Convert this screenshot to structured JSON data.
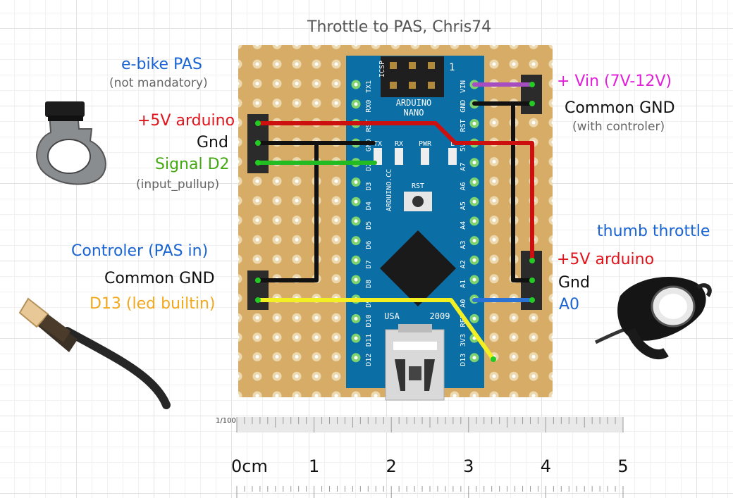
{
  "title": "Throttle to PAS, Chris74",
  "left": {
    "pas_title": "e-bike PAS",
    "pas_sub": "(not mandatory)",
    "plus5v": "+5V arduino",
    "gnd": "Gnd",
    "signal": "Signal D2",
    "signal_sub": "(input_pullup)",
    "controler": "Controler (PAS  in)",
    "common_gnd": "Common GND",
    "d13": "D13 (led builtin)"
  },
  "right": {
    "vin": "+ Vin (7V-12V)",
    "common_gnd": "Common GND",
    "common_gnd_sub": "(with controler)",
    "throttle": "thumb throttle",
    "plus5v": "+5V arduino",
    "gnd": "Gnd",
    "a0": "A0"
  },
  "board": {
    "name1": "ARDUINO",
    "name2": "NANO",
    "icsp": "ICSP",
    "brand": "ARDUINO.CC",
    "rst": "RST",
    "usa": "USA",
    "year": "2009",
    "led_tx": "TX",
    "led_rx": "RX",
    "led_pwr": "PWR",
    "led_l": "L",
    "icsp_pin1": "1",
    "left_pins": [
      "TX1",
      "RX0",
      "RST",
      "GND",
      "D2",
      "D3",
      "D4",
      "D5",
      "D6",
      "D7",
      "D8",
      "D9",
      "D10",
      "D11",
      "D12"
    ],
    "right_pins": [
      "VIN",
      "GND",
      "RST",
      "5V",
      "A7",
      "A6",
      "A5",
      "A4",
      "A3",
      "A2",
      "A1",
      "A0",
      "REF",
      "3V3",
      "D13"
    ]
  },
  "ruler": {
    "scale": "1/100",
    "labels": [
      "0cm",
      "1",
      "2",
      "3",
      "4",
      "5"
    ]
  },
  "colors": {
    "board": "#dab36f",
    "nano": "#0b6fa6",
    "wire_red": "#cc1010",
    "wire_black": "#111111",
    "wire_green": "#22bb22",
    "wire_yellow": "#f2ef22",
    "wire_blue": "#2a72d6",
    "wire_purple": "#a64dc0"
  }
}
